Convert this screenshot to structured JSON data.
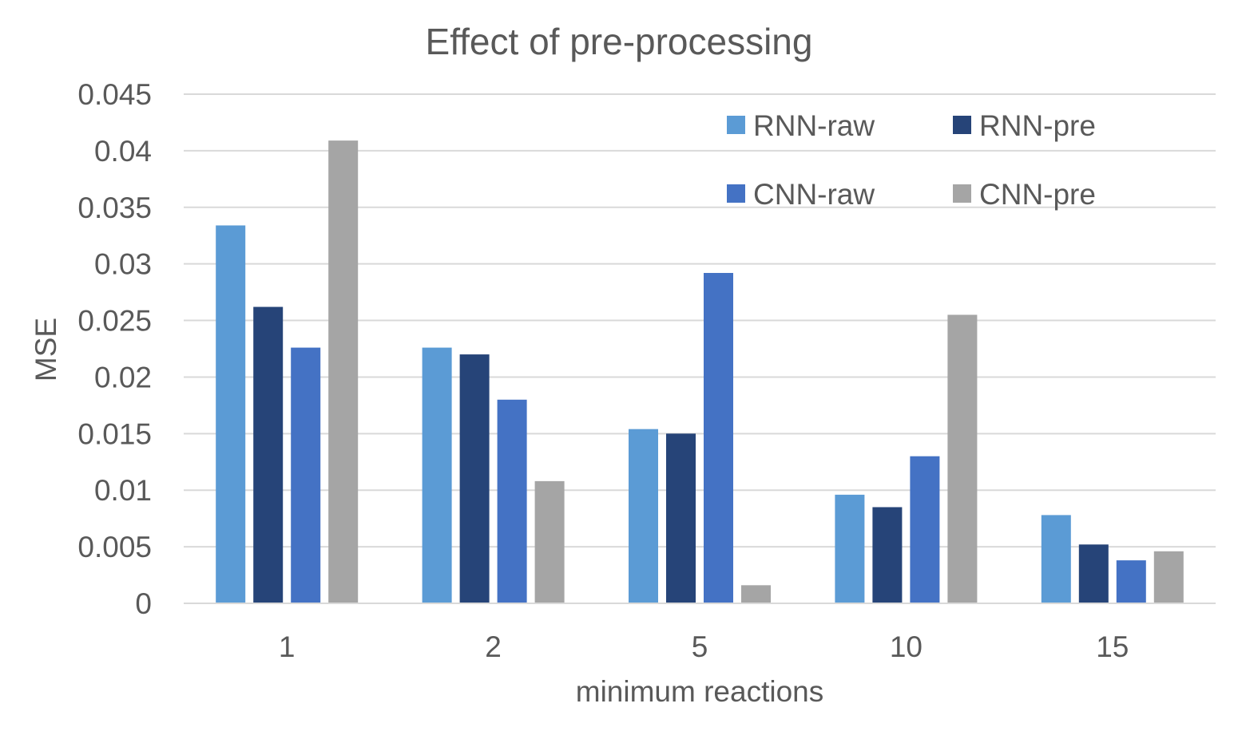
{
  "chart_data": {
    "type": "bar",
    "title": "Effect of pre-processing",
    "xlabel": "minimum reactions",
    "ylabel": "MSE",
    "categories": [
      "1",
      "2",
      "5",
      "10",
      "15"
    ],
    "ylim": [
      0,
      0.045
    ],
    "yticks": [
      "0",
      "0.005",
      "0.01",
      "0.015",
      "0.02",
      "0.025",
      "0.03",
      "0.035",
      "0.04",
      "0.045"
    ],
    "grid": true,
    "legend_position": "top-right",
    "series": [
      {
        "name": "RNN-raw",
        "color": "#5b9bd5",
        "values": [
          0.0334,
          0.0226,
          0.0154,
          0.0096,
          0.0078
        ]
      },
      {
        "name": "RNN-pre",
        "color": "#264478",
        "values": [
          0.0262,
          0.022,
          0.015,
          0.0085,
          0.0052
        ]
      },
      {
        "name": "CNN-raw",
        "color": "#4472c4",
        "values": [
          0.0226,
          0.018,
          0.0292,
          0.013,
          0.0038
        ]
      },
      {
        "name": "CNN-pre",
        "color": "#a5a5a5",
        "values": [
          0.0409,
          0.0108,
          0.0016,
          0.0255,
          0.0046
        ]
      }
    ]
  }
}
